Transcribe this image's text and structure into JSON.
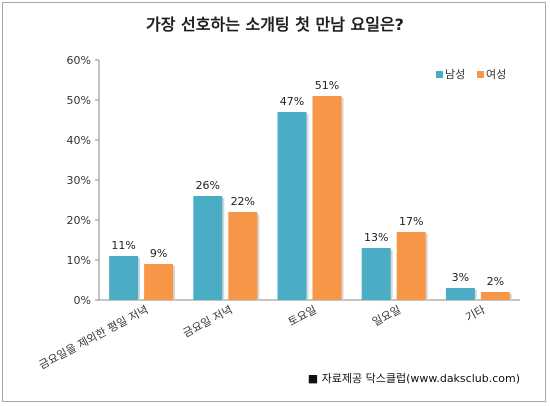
{
  "chart_data": {
    "type": "bar",
    "title": "가장 선호하는 소개팅 첫 만남 요일은?",
    "categories": [
      "금요일을 제외한 평일 저녁",
      "금요일 저녁",
      "토요일",
      "일요일",
      "기타"
    ],
    "series": [
      {
        "name": "남성",
        "values": [
          11,
          26,
          47,
          13,
          3
        ],
        "color": "#4bacc6"
      },
      {
        "name": "여성",
        "values": [
          9,
          22,
          51,
          17,
          2
        ],
        "color": "#f79646"
      }
    ],
    "yticks": [
      "0%",
      "10%",
      "20%",
      "30%",
      "40%",
      "50%",
      "60%"
    ],
    "ylim": [
      0,
      60
    ],
    "grid": false,
    "legend_position": "top-right",
    "data_label_suffix": "%",
    "source": "■ 자료제공 닥스클럽(www.daksclub.com)"
  }
}
